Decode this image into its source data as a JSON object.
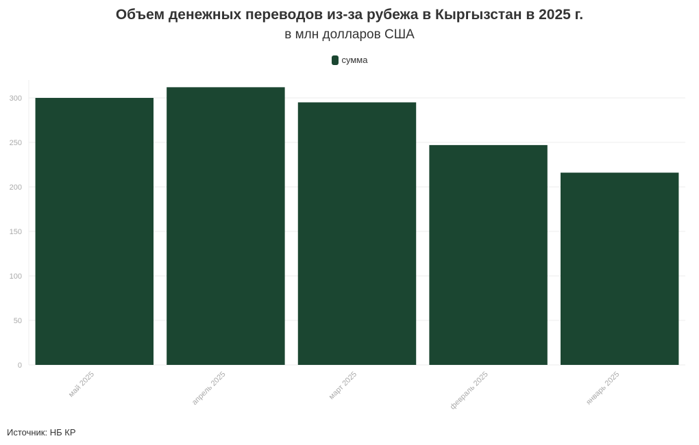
{
  "title": "Объем денежных переводов из-за рубежа в Кыргызстан в 2025 г.",
  "subtitle": "в млн долларов США",
  "legend_label": "сумма",
  "source": "Источник: НБ КР",
  "colors": {
    "bar": "#1b4631",
    "grid": "#eeeeee",
    "tick_text": "#aaaaaa"
  },
  "chart_data": {
    "type": "bar",
    "categories": [
      "май 2025",
      "апрель 2025",
      "март 2025",
      "февраль 2025",
      "январь 2025"
    ],
    "series": [
      {
        "name": "сумма",
        "values": [
          300,
          312,
          295,
          247,
          216
        ]
      }
    ],
    "yticks": [
      0,
      50,
      100,
      150,
      200,
      250,
      300
    ],
    "ylim": [
      0,
      320
    ],
    "grid": true,
    "legend_position": "top-center"
  }
}
